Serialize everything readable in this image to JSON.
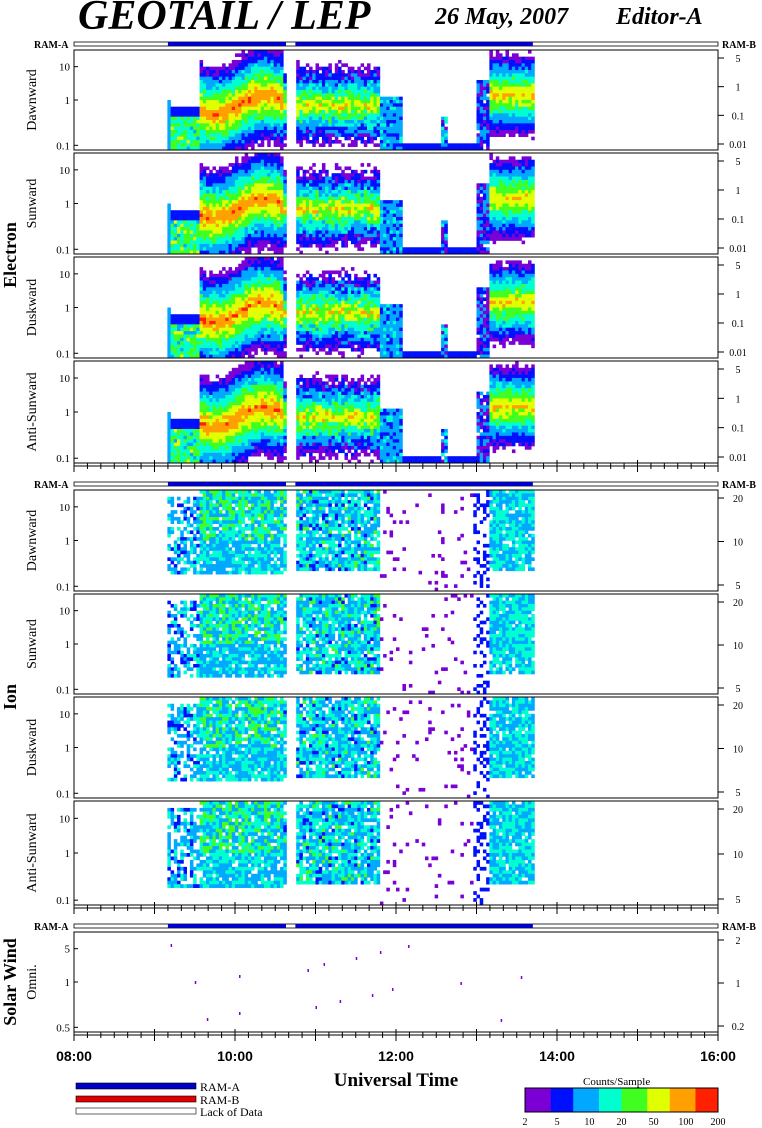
{
  "header": {
    "title": "GEOTAIL / LEP",
    "date": "26 May, 2007",
    "editor": "Editor-A"
  },
  "groups": [
    {
      "label": "Electron",
      "ram_left": "RAM-A",
      "ram_right": "RAM-B"
    },
    {
      "label": "Ion",
      "ram_left": "RAM-A",
      "ram_right": "RAM-B"
    },
    {
      "label": "Solar Wind",
      "ram_left": "RAM-A",
      "ram_right": "RAM-B"
    }
  ],
  "panels": [
    {
      "group": "Electron",
      "label": "Dawnward",
      "yticks": [
        "10",
        "1",
        "0.1"
      ],
      "rticks": [
        "5",
        "1",
        "0.1",
        "0.01"
      ]
    },
    {
      "group": "Electron",
      "label": "Sunward",
      "yticks": [
        "10",
        "1",
        "0.1"
      ],
      "rticks": [
        "5",
        "1",
        "0.1",
        "0.01"
      ]
    },
    {
      "group": "Electron",
      "label": "Duskward",
      "yticks": [
        "10",
        "1",
        "0.1"
      ],
      "rticks": [
        "5",
        "1",
        "0.1",
        "0.01"
      ]
    },
    {
      "group": "Electron",
      "label": "Anti-Sunward",
      "yticks": [
        "10",
        "1",
        "0.1"
      ],
      "rticks": [
        "5",
        "1",
        "0.1",
        "0.01"
      ]
    },
    {
      "group": "Ion",
      "label": "Dawnward",
      "yticks": [
        "10",
        "1",
        "0.1"
      ],
      "rticks": [
        "20",
        "10",
        "5"
      ]
    },
    {
      "group": "Ion",
      "label": "Sunward",
      "yticks": [
        "10",
        "1",
        "0.1"
      ],
      "rticks": [
        "20",
        "10",
        "5"
      ]
    },
    {
      "group": "Ion",
      "label": "Duskward",
      "yticks": [
        "10",
        "1",
        "0.1"
      ],
      "rticks": [
        "20",
        "10",
        "5"
      ]
    },
    {
      "group": "Ion",
      "label": "Anti-Sunward",
      "yticks": [
        "10",
        "1",
        "0.1"
      ],
      "rticks": [
        "20",
        "10",
        "5"
      ]
    },
    {
      "group": "Solar Wind",
      "label": "Omni.",
      "yticks": [
        "5",
        "1",
        "0.5"
      ],
      "rticks": [
        "2",
        "1",
        "0.2"
      ]
    }
  ],
  "legend": [
    {
      "label": "RAM-A",
      "color": "#0000c8"
    },
    {
      "label": "RAM-B",
      "color": "#e00000"
    },
    {
      "label": "Lack of Data",
      "color": "#ffffff"
    }
  ],
  "colorbar": {
    "title": "Counts/Sample",
    "ticks": [
      "2",
      "5",
      "10",
      "20",
      "50",
      "100",
      "200"
    ],
    "colors": [
      "#7a00d6",
      "#0010ff",
      "#00a8ff",
      "#00ffd0",
      "#40ff20",
      "#e0ff00",
      "#ffa000",
      "#ff2000"
    ]
  },
  "chart_data": {
    "type": "heatmap",
    "title": "GEOTAIL / LEP",
    "xlabel": "Universal Time",
    "x_ticks": [
      "08:00",
      "10:00",
      "12:00",
      "14:00",
      "16:00"
    ],
    "xlim": [
      "08:00",
      "16:00"
    ],
    "data_intervals": [
      [
        "09:10",
        "10:38"
      ],
      [
        "10:45",
        "13:42"
      ]
    ],
    "ram_a_intervals": [
      [
        "09:10",
        "10:38"
      ],
      [
        "10:45",
        "13:42"
      ]
    ],
    "solar_wind_points_hours": [
      9.2,
      9.5,
      9.65,
      10.05,
      10.05,
      10.9,
      11.0,
      11.1,
      11.3,
      11.5,
      11.7,
      11.8,
      11.95,
      12.15,
      12.8,
      13.3,
      13.55
    ]
  }
}
